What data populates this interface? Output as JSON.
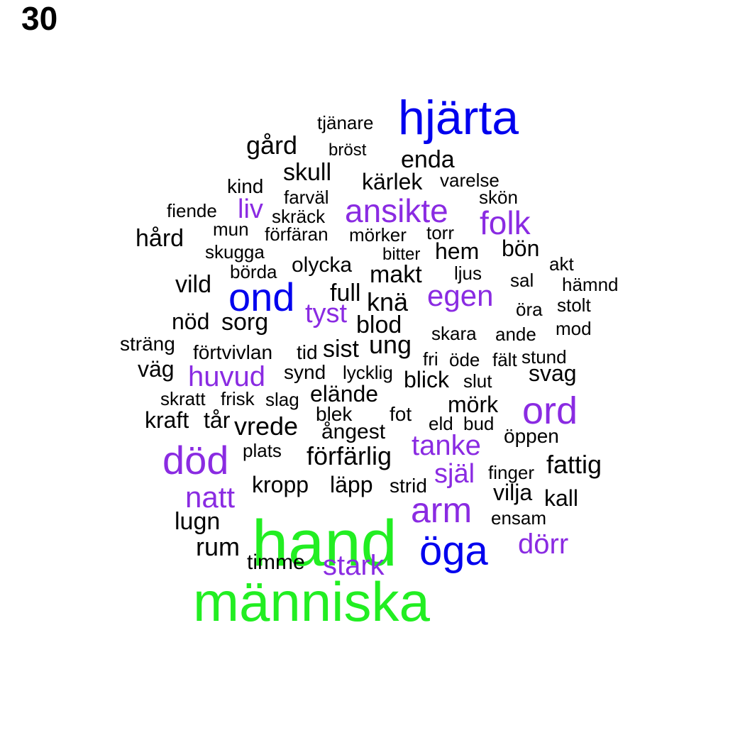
{
  "panel_number": "30",
  "palette": {
    "largest": "#22ee22",
    "large": "#0000ee",
    "medium": "#8a2be2",
    "small": "#000000"
  },
  "words": [
    {
      "text": "hand",
      "weight": 5,
      "color": "#22ee22"
    },
    {
      "text": "människa",
      "weight": 5,
      "color": "#22ee22"
    },
    {
      "text": "hjärta",
      "weight": 4,
      "color": "#0000ee"
    },
    {
      "text": "öga",
      "weight": 4,
      "color": "#0000ee"
    },
    {
      "text": "ond",
      "weight": 4,
      "color": "#0000ee"
    },
    {
      "text": "död",
      "weight": 3,
      "color": "#8a2be2"
    },
    {
      "text": "ord",
      "weight": 3,
      "color": "#8a2be2"
    },
    {
      "text": "arm",
      "weight": 3,
      "color": "#8a2be2"
    },
    {
      "text": "ansikte",
      "weight": 3,
      "color": "#8a2be2"
    },
    {
      "text": "folk",
      "weight": 3,
      "color": "#8a2be2"
    },
    {
      "text": "egen",
      "weight": 3,
      "color": "#8a2be2"
    },
    {
      "text": "huvud",
      "weight": 3,
      "color": "#8a2be2"
    },
    {
      "text": "natt",
      "weight": 3,
      "color": "#8a2be2"
    },
    {
      "text": "tanke",
      "weight": 3,
      "color": "#8a2be2"
    },
    {
      "text": "själ",
      "weight": 3,
      "color": "#8a2be2"
    },
    {
      "text": "dörr",
      "weight": 3,
      "color": "#8a2be2"
    },
    {
      "text": "stark",
      "weight": 3,
      "color": "#8a2be2"
    },
    {
      "text": "liv",
      "weight": 3,
      "color": "#8a2be2"
    },
    {
      "text": "tyst",
      "weight": 3,
      "color": "#8a2be2"
    },
    {
      "text": "tjänare",
      "weight": 1,
      "color": "#000000"
    },
    {
      "text": "gård",
      "weight": 2,
      "color": "#000000"
    },
    {
      "text": "bröst",
      "weight": 1,
      "color": "#000000"
    },
    {
      "text": "enda",
      "weight": 2,
      "color": "#000000"
    },
    {
      "text": "skull",
      "weight": 2,
      "color": "#000000"
    },
    {
      "text": "kind",
      "weight": 1,
      "color": "#000000"
    },
    {
      "text": "kärlek",
      "weight": 2,
      "color": "#000000"
    },
    {
      "text": "varelse",
      "weight": 1,
      "color": "#000000"
    },
    {
      "text": "farväl",
      "weight": 1,
      "color": "#000000"
    },
    {
      "text": "skön",
      "weight": 1,
      "color": "#000000"
    },
    {
      "text": "fiende",
      "weight": 1,
      "color": "#000000"
    },
    {
      "text": "skräck",
      "weight": 1,
      "color": "#000000"
    },
    {
      "text": "mun",
      "weight": 1,
      "color": "#000000"
    },
    {
      "text": "förfäran",
      "weight": 1,
      "color": "#000000"
    },
    {
      "text": "mörker",
      "weight": 1,
      "color": "#000000"
    },
    {
      "text": "torr",
      "weight": 1,
      "color": "#000000"
    },
    {
      "text": "hård",
      "weight": 2,
      "color": "#000000"
    },
    {
      "text": "skugga",
      "weight": 1,
      "color": "#000000"
    },
    {
      "text": "bitter",
      "weight": 1,
      "color": "#000000"
    },
    {
      "text": "hem",
      "weight": 2,
      "color": "#000000"
    },
    {
      "text": "bön",
      "weight": 2,
      "color": "#000000"
    },
    {
      "text": "olycka",
      "weight": 1,
      "color": "#000000"
    },
    {
      "text": "akt",
      "weight": 1,
      "color": "#000000"
    },
    {
      "text": "börda",
      "weight": 1,
      "color": "#000000"
    },
    {
      "text": "makt",
      "weight": 2,
      "color": "#000000"
    },
    {
      "text": "ljus",
      "weight": 1,
      "color": "#000000"
    },
    {
      "text": "sal",
      "weight": 1,
      "color": "#000000"
    },
    {
      "text": "hämnd",
      "weight": 1,
      "color": "#000000"
    },
    {
      "text": "vild",
      "weight": 2,
      "color": "#000000"
    },
    {
      "text": "full",
      "weight": 2,
      "color": "#000000"
    },
    {
      "text": "knä",
      "weight": 2,
      "color": "#000000"
    },
    {
      "text": "öra",
      "weight": 1,
      "color": "#000000"
    },
    {
      "text": "stolt",
      "weight": 1,
      "color": "#000000"
    },
    {
      "text": "nöd",
      "weight": 2,
      "color": "#000000"
    },
    {
      "text": "sorg",
      "weight": 2,
      "color": "#000000"
    },
    {
      "text": "blod",
      "weight": 2,
      "color": "#000000"
    },
    {
      "text": "skara",
      "weight": 1,
      "color": "#000000"
    },
    {
      "text": "ande",
      "weight": 1,
      "color": "#000000"
    },
    {
      "text": "mod",
      "weight": 1,
      "color": "#000000"
    },
    {
      "text": "sträng",
      "weight": 1,
      "color": "#000000"
    },
    {
      "text": "förtvivlan",
      "weight": 1,
      "color": "#000000"
    },
    {
      "text": "tid",
      "weight": 1,
      "color": "#000000"
    },
    {
      "text": "sist",
      "weight": 2,
      "color": "#000000"
    },
    {
      "text": "ung",
      "weight": 2,
      "color": "#000000"
    },
    {
      "text": "fri",
      "weight": 1,
      "color": "#000000"
    },
    {
      "text": "öde",
      "weight": 1,
      "color": "#000000"
    },
    {
      "text": "fält",
      "weight": 1,
      "color": "#000000"
    },
    {
      "text": "stund",
      "weight": 1,
      "color": "#000000"
    },
    {
      "text": "väg",
      "weight": 2,
      "color": "#000000"
    },
    {
      "text": "synd",
      "weight": 1,
      "color": "#000000"
    },
    {
      "text": "lycklig",
      "weight": 1,
      "color": "#000000"
    },
    {
      "text": "blick",
      "weight": 2,
      "color": "#000000"
    },
    {
      "text": "slut",
      "weight": 1,
      "color": "#000000"
    },
    {
      "text": "svag",
      "weight": 2,
      "color": "#000000"
    },
    {
      "text": "skratt",
      "weight": 1,
      "color": "#000000"
    },
    {
      "text": "frisk",
      "weight": 1,
      "color": "#000000"
    },
    {
      "text": "slag",
      "weight": 1,
      "color": "#000000"
    },
    {
      "text": "elände",
      "weight": 2,
      "color": "#000000"
    },
    {
      "text": "mörk",
      "weight": 2,
      "color": "#000000"
    },
    {
      "text": "kraft",
      "weight": 2,
      "color": "#000000"
    },
    {
      "text": "tår",
      "weight": 2,
      "color": "#000000"
    },
    {
      "text": "blek",
      "weight": 1,
      "color": "#000000"
    },
    {
      "text": "fot",
      "weight": 1,
      "color": "#000000"
    },
    {
      "text": "eld",
      "weight": 1,
      "color": "#000000"
    },
    {
      "text": "bud",
      "weight": 1,
      "color": "#000000"
    },
    {
      "text": "vrede",
      "weight": 2,
      "color": "#000000"
    },
    {
      "text": "ångest",
      "weight": 2,
      "color": "#000000"
    },
    {
      "text": "öppen",
      "weight": 1,
      "color": "#000000"
    },
    {
      "text": "plats",
      "weight": 1,
      "color": "#000000"
    },
    {
      "text": "förfärlig",
      "weight": 2,
      "color": "#000000"
    },
    {
      "text": "fattig",
      "weight": 2,
      "color": "#000000"
    },
    {
      "text": "finger",
      "weight": 1,
      "color": "#000000"
    },
    {
      "text": "kropp",
      "weight": 2,
      "color": "#000000"
    },
    {
      "text": "läpp",
      "weight": 2,
      "color": "#000000"
    },
    {
      "text": "strid",
      "weight": 1,
      "color": "#000000"
    },
    {
      "text": "vilja",
      "weight": 2,
      "color": "#000000"
    },
    {
      "text": "kall",
      "weight": 2,
      "color": "#000000"
    },
    {
      "text": "lugn",
      "weight": 2,
      "color": "#000000"
    },
    {
      "text": "ensam",
      "weight": 1,
      "color": "#000000"
    },
    {
      "text": "rum",
      "weight": 2,
      "color": "#000000"
    },
    {
      "text": "timme",
      "weight": 1,
      "color": "#000000"
    }
  ]
}
